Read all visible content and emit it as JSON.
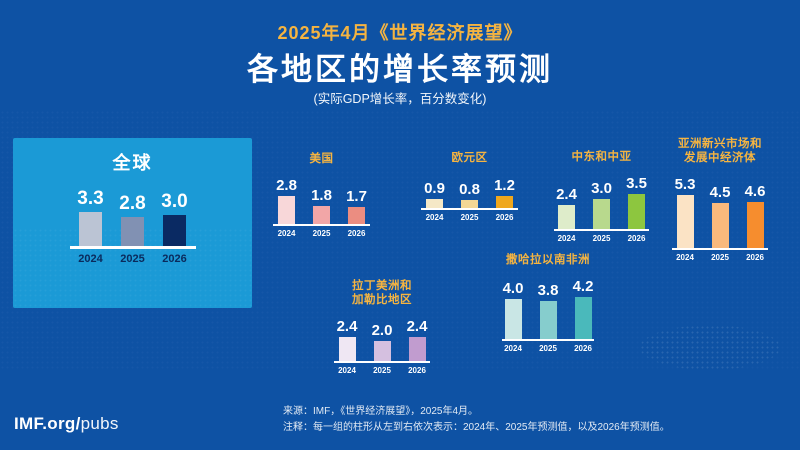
{
  "header": {
    "kicker": "2025年4月《世界经济展望》",
    "title": "各地区的增长率预测",
    "subtitle": "(实际GDP增长率，百分数变化)"
  },
  "charts": [
    {
      "id": "global",
      "title": "全球",
      "years": [
        "2024",
        "2025",
        "2026"
      ],
      "values": [
        3.3,
        2.8,
        3.0
      ],
      "colors": [
        "#BBC4D4",
        "#8191B3",
        "#0A2A63"
      ]
    },
    {
      "id": "united-states",
      "title": "美国",
      "years": [
        "2024",
        "2025",
        "2026"
      ],
      "values": [
        2.8,
        1.8,
        1.7
      ],
      "colors": [
        "#F8D7D9",
        "#F2A6A7",
        "#EB8D81"
      ]
    },
    {
      "id": "euro-area",
      "title": "欧元区",
      "years": [
        "2024",
        "2025",
        "2026"
      ],
      "values": [
        0.9,
        0.8,
        1.2
      ],
      "colors": [
        "#F5E8C6",
        "#F3D795",
        "#EFA71D"
      ]
    },
    {
      "id": "middle-east-central-asia",
      "title": "中东和中亚",
      "years": [
        "2024",
        "2025",
        "2026"
      ],
      "values": [
        2.4,
        3.0,
        3.5
      ],
      "colors": [
        "#DEECCA",
        "#B8D98D",
        "#8DC63F"
      ]
    },
    {
      "id": "emerging-developing-asia",
      "title": "亚洲新兴市场和\n发展中经济体",
      "years": [
        "2024",
        "2025",
        "2026"
      ],
      "values": [
        5.3,
        4.5,
        4.6
      ],
      "colors": [
        "#FBE3C5",
        "#F9B97C",
        "#F68D2E"
      ]
    },
    {
      "id": "latin-america-caribbean",
      "title": "拉丁美洲和\n加勒比地区",
      "years": [
        "2024",
        "2025",
        "2026"
      ],
      "values": [
        2.4,
        2.0,
        2.4
      ],
      "colors": [
        "#EFE7F3",
        "#D5C0E0",
        "#C19CCF"
      ]
    },
    {
      "id": "sub-saharan-africa",
      "title": "撒哈拉以南非洲",
      "years": [
        "2024",
        "2025",
        "2026"
      ],
      "values": [
        4.0,
        3.8,
        4.2
      ],
      "colors": [
        "#C9E6E5",
        "#86CDCD",
        "#4AB9BB"
      ]
    }
  ],
  "footer": {
    "logo_bold": "IMF.org/",
    "logo_light": "pubs",
    "source": "来源：IMF，《世界经济展望》，2025年4月。",
    "note": "注释：每一组的柱形从左到右依次表示：2024年、2025年预测值，以及2026年预测值。"
  },
  "colors": {
    "background": "#0E52A4",
    "global_panel": "#1B9AD6",
    "accent_gold": "#F5B441",
    "year_text_navy": "#0A2A5C",
    "text_white": "#FFFFFF"
  },
  "chart_data": [
    {
      "type": "bar",
      "title": "全球",
      "categories": [
        "2024",
        "2025",
        "2026"
      ],
      "values": [
        3.3,
        2.8,
        3.0
      ],
      "ylabel": "实际GDP增长率，百分数变化",
      "ylim": [
        0,
        6
      ],
      "grid": false,
      "legend": "none"
    },
    {
      "type": "bar",
      "title": "美国",
      "categories": [
        "2024",
        "2025",
        "2026"
      ],
      "values": [
        2.8,
        1.8,
        1.7
      ],
      "ylabel": "实际GDP增长率，百分数变化",
      "ylim": [
        0,
        6
      ],
      "grid": false,
      "legend": "none"
    },
    {
      "type": "bar",
      "title": "欧元区",
      "categories": [
        "2024",
        "2025",
        "2026"
      ],
      "values": [
        0.9,
        0.8,
        1.2
      ],
      "ylabel": "实际GDP增长率，百分数变化",
      "ylim": [
        0,
        6
      ],
      "grid": false,
      "legend": "none"
    },
    {
      "type": "bar",
      "title": "中东和中亚",
      "categories": [
        "2024",
        "2025",
        "2026"
      ],
      "values": [
        2.4,
        3.0,
        3.5
      ],
      "ylabel": "实际GDP增长率，百分数变化",
      "ylim": [
        0,
        6
      ],
      "grid": false,
      "legend": "none"
    },
    {
      "type": "bar",
      "title": "亚洲新兴市场和发展中经济体",
      "categories": [
        "2024",
        "2025",
        "2026"
      ],
      "values": [
        5.3,
        4.5,
        4.6
      ],
      "ylabel": "实际GDP增长率，百分数变化",
      "ylim": [
        0,
        6
      ],
      "grid": false,
      "legend": "none"
    },
    {
      "type": "bar",
      "title": "拉丁美洲和加勒比地区",
      "categories": [
        "2024",
        "2025",
        "2026"
      ],
      "values": [
        2.4,
        2.0,
        2.4
      ],
      "ylabel": "实际GDP增长率，百分数变化",
      "ylim": [
        0,
        6
      ],
      "grid": false,
      "legend": "none"
    },
    {
      "type": "bar",
      "title": "撒哈拉以南非洲",
      "categories": [
        "2024",
        "2025",
        "2026"
      ],
      "values": [
        4.0,
        3.8,
        4.2
      ],
      "ylabel": "实际GDP增长率，百分数变化",
      "ylim": [
        0,
        6
      ],
      "grid": false,
      "legend": "none"
    }
  ]
}
